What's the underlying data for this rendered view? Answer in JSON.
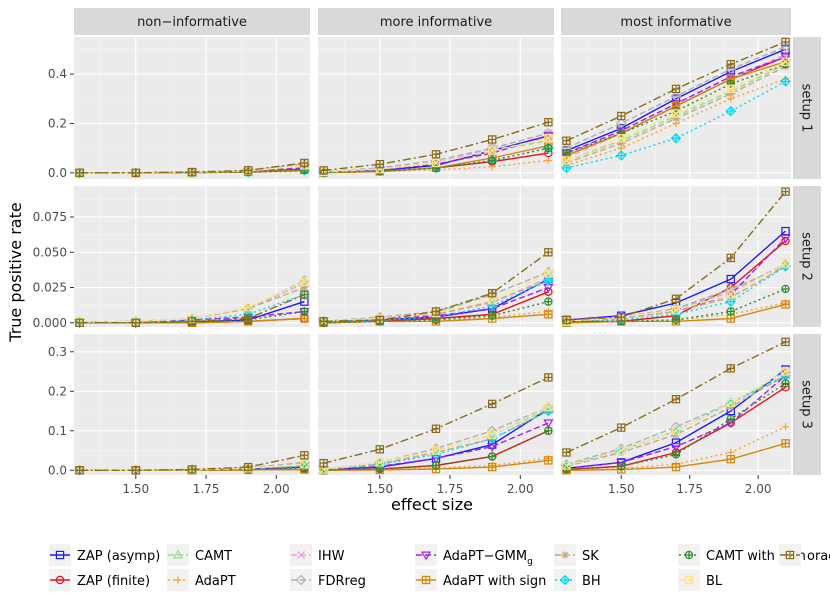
{
  "chart_data": {
    "type": "line",
    "facets": {
      "columns": [
        "non−informative",
        "more informative",
        "most informative"
      ],
      "rows": [
        "setup 1",
        "setup 2",
        "setup 3"
      ]
    },
    "xlabel": "effect size",
    "ylabel": "True positive rate",
    "x": [
      1.3,
      1.5,
      1.7,
      1.9,
      2.1
    ],
    "xlim": [
      1.28,
      2.12
    ],
    "x_ticks": [
      1.5,
      1.75,
      2.0
    ],
    "x_tick_labels": [
      "1.50",
      "1.75",
      "2.00"
    ],
    "rows": [
      {
        "name": "setup 1",
        "ylim": [
          -0.025,
          0.55
        ],
        "y_ticks": [
          0.0,
          0.2,
          0.4
        ],
        "y_tick_labels": [
          "0.0",
          "0.2",
          "0.4"
        ]
      },
      {
        "name": "setup 2",
        "ylim": [
          -0.003,
          0.097
        ],
        "y_ticks": [
          0.0,
          0.025,
          0.05,
          0.075
        ],
        "y_tick_labels": [
          "0.000",
          "0.025",
          "0.050",
          "0.075"
        ]
      },
      {
        "name": "setup 3",
        "ylim": [
          -0.012,
          0.345
        ],
        "y_ticks": [
          0.0,
          0.1,
          0.2,
          0.3
        ],
        "y_tick_labels": [
          "0.0",
          "0.1",
          "0.2",
          "0.3"
        ]
      }
    ],
    "series": [
      {
        "name": "ZAP (asymp)",
        "color": "#1a1aff",
        "dash": "solid",
        "marker": "square",
        "values": [
          [
            [
              0,
              0,
              0.002,
              0.004,
              0.015
            ],
            [
              0.002,
              0.01,
              0.03,
              0.09,
              0.15
            ],
            [
              0.09,
              0.18,
              0.3,
              0.41,
              0.5
            ]
          ],
          [
            [
              0,
              0,
              0.0005,
              0.002,
              0.015
            ],
            [
              0.001,
              0.002,
              0.004,
              0.01,
              0.031
            ],
            [
              0.002,
              0.005,
              0.014,
              0.031,
              0.065
            ]
          ],
          [
            [
              0,
              0,
              0.001,
              0.003,
              0.008
            ],
            [
              0.001,
              0.008,
              0.03,
              0.065,
              0.155
            ],
            [
              0.005,
              0.02,
              0.07,
              0.15,
              0.255
            ]
          ]
        ]
      },
      {
        "name": "ZAP (finite)",
        "color": "#e8101a",
        "dash": "solid",
        "marker": "circle",
        "values": [
          [
            [
              0,
              0,
              0.001,
              0.003,
              0.01
            ],
            [
              0.001,
              0.005,
              0.02,
              0.045,
              0.08
            ],
            [
              0.07,
              0.16,
              0.27,
              0.38,
              0.47
            ]
          ],
          [
            [
              0,
              0,
              0,
              0.001,
              0.003
            ],
            [
              0,
              0.001,
              0.003,
              0.006,
              0.022
            ],
            [
              0.001,
              0.001,
              0.005,
              0.025,
              0.058
            ]
          ],
          [
            [
              0,
              0,
              0,
              0.001,
              0.002
            ],
            [
              0,
              0.003,
              0.012,
              0.035,
              0.1
            ],
            [
              0.002,
              0.01,
              0.045,
              0.12,
              0.21
            ]
          ]
        ]
      },
      {
        "name": "CAMT",
        "color": "#8fe08f",
        "dash": "6,3",
        "marker": "triangle",
        "values": [
          [
            [
              0,
              0,
              0.002,
              0.008,
              0.03
            ],
            [
              0.004,
              0.015,
              0.04,
              0.09,
              0.13
            ],
            [
              0.05,
              0.13,
              0.23,
              0.33,
              0.44
            ]
          ],
          [
            [
              0.0005,
              0.001,
              0.003,
              0.01,
              0.028
            ],
            [
              0.001,
              0.003,
              0.007,
              0.02,
              0.036
            ],
            [
              0.001,
              0.004,
              0.009,
              0.022,
              0.042
            ]
          ],
          [
            [
              0,
              0,
              0.001,
              0.005,
              0.015
            ],
            [
              0.002,
              0.02,
              0.05,
              0.09,
              0.155
            ],
            [
              0.012,
              0.05,
              0.1,
              0.17,
              0.24
            ]
          ]
        ]
      },
      {
        "name": "AdaPT",
        "color": "#ffa033",
        "dash": "2,3",
        "marker": "plus",
        "values": [
          [
            [
              0,
              0,
              0.001,
              0.002,
              0.005
            ],
            [
              0.001,
              0.005,
              0.012,
              0.025,
              0.05
            ],
            [
              0.03,
              0.1,
              0.2,
              0.3,
              0.38
            ]
          ],
          [
            [
              0,
              0,
              0,
              0.001,
              0.003
            ],
            [
              0,
              0.001,
              0.002,
              0.004,
              0.008
            ],
            [
              0,
              0.001,
              0.002,
              0.006,
              0.014
            ]
          ],
          [
            [
              0,
              0,
              0,
              0.001,
              0.002
            ],
            [
              0,
              0.002,
              0.006,
              0.012,
              0.03
            ],
            [
              0,
              0.005,
              0.015,
              0.045,
              0.11
            ]
          ]
        ]
      },
      {
        "name": "IHW",
        "color": "#e8a0e0",
        "dash": "6,3",
        "marker": "x",
        "values": [
          [
            [
              0,
              0,
              0.002,
              0.008,
              0.03
            ],
            [
              0.004,
              0.015,
              0.04,
              0.1,
              0.16
            ],
            [
              0.06,
              0.16,
              0.27,
              0.38,
              0.48
            ]
          ],
          [
            [
              0.0005,
              0.001,
              0.003,
              0.011,
              0.028
            ],
            [
              0.001,
              0.003,
              0.006,
              0.014,
              0.032
            ],
            [
              0.002,
              0.004,
              0.01,
              0.022,
              0.042
            ]
          ],
          [
            [
              0,
              0,
              0.001,
              0.004,
              0.012
            ],
            [
              0.002,
              0.018,
              0.05,
              0.09,
              0.16
            ],
            [
              0.012,
              0.05,
              0.1,
              0.17,
              0.25
            ]
          ]
        ]
      },
      {
        "name": "FDRreg",
        "color": "#b0b0b0",
        "dash": "6,3",
        "marker": "diamond",
        "values": [
          [
            [
              0,
              0,
              0.002,
              0.01,
              0.035
            ],
            [
              0.005,
              0.02,
              0.05,
              0.1,
              0.16
            ],
            [
              0.1,
              0.2,
              0.31,
              0.42,
              0.51
            ]
          ],
          [
            [
              0.0005,
              0.001,
              0.003,
              0.01,
              0.03
            ],
            [
              0.001,
              0.004,
              0.008,
              0.02,
              0.036
            ],
            [
              0.002,
              0.004,
              0.01,
              0.024,
              0.04
            ]
          ],
          [
            [
              0,
              0,
              0.002,
              0.006,
              0.02
            ],
            [
              0.003,
              0.02,
              0.055,
              0.1,
              0.16
            ],
            [
              0.015,
              0.055,
              0.11,
              0.17,
              0.25
            ]
          ]
        ]
      },
      {
        "name": "AdaPT−GMM",
        "name_sub": "g",
        "color": "#a020f0",
        "dash": "6,3",
        "marker": "triangle-down",
        "values": [
          [
            [
              0,
              0,
              0.002,
              0.006,
              0.02
            ],
            [
              0.003,
              0.012,
              0.035,
              0.08,
              0.15
            ],
            [
              0.08,
              0.17,
              0.28,
              0.39,
              0.47
            ]
          ],
          [
            [
              0,
              0,
              0.002,
              0.004,
              0.008
            ],
            [
              0.001,
              0.002,
              0.005,
              0.01,
              0.025
            ],
            [
              0.002,
              0.004,
              0.008,
              0.02,
              0.06
            ]
          ],
          [
            [
              0,
              0,
              0.001,
              0.003,
              0.01
            ],
            [
              0.001,
              0.01,
              0.03,
              0.06,
              0.12
            ],
            [
              0.005,
              0.02,
              0.06,
              0.12,
              0.24
            ]
          ]
        ]
      },
      {
        "name": "AdaPT with sign",
        "color": "#d4880a",
        "dash": "solid",
        "marker": "square-cross",
        "values": [
          [
            [
              0,
              0,
              0.001,
              0.004,
              0.012
            ],
            [
              0.001,
              0.006,
              0.02,
              0.06,
              0.11
            ],
            [
              0.07,
              0.16,
              0.27,
              0.38,
              0.45
            ]
          ],
          [
            [
              0,
              0,
              0,
              0.001,
              0.003
            ],
            [
              0,
              0.001,
              0.001,
              0.003,
              0.006
            ],
            [
              0,
              0.001,
              0.001,
              0.003,
              0.013
            ]
          ],
          [
            [
              0,
              0,
              0,
              0.001,
              0.002
            ],
            [
              0,
              0.001,
              0.003,
              0.008,
              0.025
            ],
            [
              0,
              0.002,
              0.008,
              0.028,
              0.068
            ]
          ]
        ]
      },
      {
        "name": "SK",
        "color": "#c8a882",
        "dash": "6,3",
        "marker": "asterisk",
        "values": [
          [
            [
              0,
              0,
              0.002,
              0.008,
              0.03
            ],
            [
              0.004,
              0.015,
              0.04,
              0.09,
              0.14
            ],
            [
              0.04,
              0.12,
              0.22,
              0.32,
              0.43
            ]
          ],
          [
            [
              0.0005,
              0.001,
              0.003,
              0.01,
              0.025
            ],
            [
              0.001,
              0.003,
              0.006,
              0.015,
              0.03
            ],
            [
              0.001,
              0.003,
              0.008,
              0.018,
              0.04
            ]
          ],
          [
            [
              0,
              0,
              0.001,
              0.004,
              0.012
            ],
            [
              0.002,
              0.015,
              0.045,
              0.08,
              0.15
            ],
            [
              0.01,
              0.045,
              0.09,
              0.16,
              0.24
            ]
          ]
        ]
      },
      {
        "name": "BH",
        "color": "#00d8f0",
        "dash": "2,3",
        "marker": "diamond-plus",
        "values": [
          [
            [
              0,
              0,
              0.001,
              0.003,
              0.01
            ],
            [
              0.002,
              0.008,
              0.02,
              0.05,
              0.1
            ],
            [
              0.02,
              0.07,
              0.14,
              0.25,
              0.37
            ]
          ],
          [
            [
              0.0005,
              0.001,
              0.002,
              0.006,
              0.02
            ],
            [
              0.001,
              0.002,
              0.004,
              0.012,
              0.03
            ],
            [
              0.001,
              0.002,
              0.006,
              0.015,
              0.04
            ]
          ],
          [
            [
              0,
              0,
              0.001,
              0.003,
              0.01
            ],
            [
              0.002,
              0.015,
              0.04,
              0.08,
              0.15
            ],
            [
              0.012,
              0.05,
              0.1,
              0.17,
              0.24
            ]
          ]
        ]
      },
      {
        "name": "CAMT with sign",
        "color": "#2e8b2e",
        "dash": "2,3",
        "marker": "circle-plus",
        "values": [
          [
            [
              0,
              0,
              0.001,
              0.003,
              0.012
            ],
            [
              0.001,
              0.007,
              0.02,
              0.05,
              0.1
            ],
            [
              0.08,
              0.16,
              0.25,
              0.36,
              0.44
            ]
          ],
          [
            [
              0,
              0,
              0.001,
              0.002,
              0.008
            ],
            [
              0,
              0.001,
              0.002,
              0.005,
              0.015
            ],
            [
              0.001,
              0.001,
              0.002,
              0.008,
              0.024
            ]
          ],
          [
            [
              0,
              0,
              0.001,
              0.002,
              0.005
            ],
            [
              0.001,
              0.004,
              0.012,
              0.035,
              0.1
            ],
            [
              0.003,
              0.01,
              0.04,
              0.13,
              0.22
            ]
          ]
        ]
      },
      {
        "name": "BL",
        "color": "#ffe68c",
        "dash": "6,3",
        "marker": "square-x",
        "values": [
          [
            [
              0,
              0,
              0.002,
              0.008,
              0.03
            ],
            [
              0.004,
              0.015,
              0.04,
              0.09,
              0.14
            ],
            [
              0.05,
              0.14,
              0.24,
              0.34,
              0.45
            ]
          ],
          [
            [
              0.0005,
              0.001,
              0.003,
              0.011,
              0.029
            ],
            [
              0.001,
              0.003,
              0.007,
              0.016,
              0.035
            ],
            [
              0.001,
              0.004,
              0.009,
              0.02,
              0.042
            ]
          ],
          [
            [
              0,
              0,
              0.001,
              0.005,
              0.015
            ],
            [
              0.002,
              0.02,
              0.05,
              0.09,
              0.16
            ],
            [
              0.012,
              0.05,
              0.1,
              0.17,
              0.25
            ]
          ]
        ]
      },
      {
        "name": "oracle",
        "color": "#8b6a1a",
        "dash": "8,3,2,3",
        "marker": "square-plus",
        "values": [
          [
            [
              0,
              0,
              0.003,
              0.01,
              0.04
            ],
            [
              0.01,
              0.035,
              0.075,
              0.135,
              0.205
            ],
            [
              0.13,
              0.23,
              0.34,
              0.44,
              0.53
            ]
          ],
          [
            [
              0,
              0,
              0.001,
              0.003,
              0.02
            ],
            [
              0.001,
              0.002,
              0.008,
              0.021,
              0.05
            ],
            [
              0.002,
              0.004,
              0.017,
              0.046,
              0.093
            ]
          ],
          [
            [
              0,
              0,
              0.002,
              0.008,
              0.038
            ],
            [
              0.018,
              0.053,
              0.105,
              0.168,
              0.235
            ],
            [
              0.045,
              0.108,
              0.18,
              0.258,
              0.325
            ]
          ]
        ]
      }
    ]
  }
}
